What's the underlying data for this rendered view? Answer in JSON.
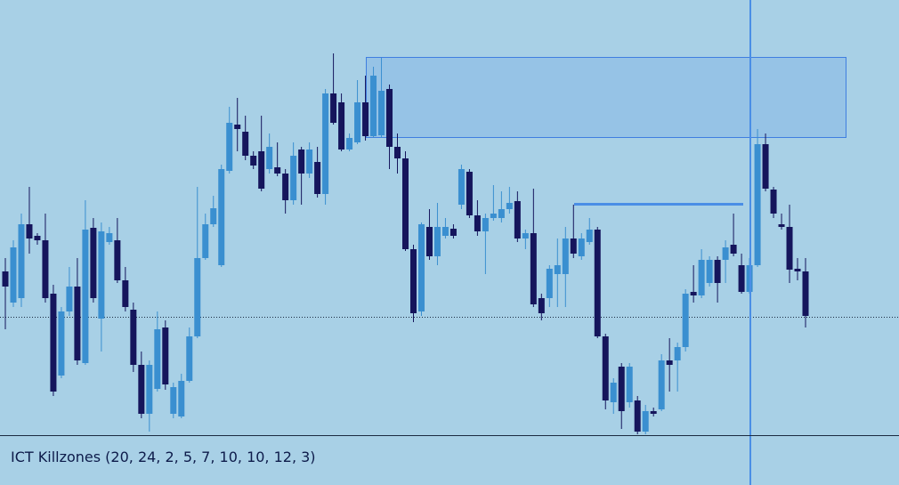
{
  "chart_data": {
    "type": "candlestick",
    "ylim": [
      0,
      488
    ],
    "up_color": "#3a8fd0",
    "down_color": "#15155c",
    "ohlc": [
      [
        183,
        198,
        118,
        166
      ],
      [
        148,
        218,
        143,
        210
      ],
      [
        153,
        248,
        143,
        236
      ],
      [
        236,
        278,
        203,
        220
      ],
      [
        223,
        226,
        213,
        218
      ],
      [
        218,
        248,
        148,
        153
      ],
      [
        158,
        168,
        43,
        48
      ],
      [
        66,
        143,
        63,
        138
      ],
      [
        138,
        188,
        133,
        166
      ],
      [
        166,
        198,
        78,
        83
      ],
      [
        80,
        263,
        78,
        230
      ],
      [
        232,
        243,
        148,
        153
      ],
      [
        130,
        238,
        93,
        228
      ],
      [
        216,
        233,
        213,
        226
      ],
      [
        218,
        243,
        170,
        173
      ],
      [
        173,
        188,
        138,
        143
      ],
      [
        140,
        148,
        70,
        78
      ],
      [
        78,
        93,
        18,
        23
      ],
      [
        23,
        83,
        3,
        78
      ],
      [
        51,
        138,
        48,
        118
      ],
      [
        120,
        128,
        50,
        56
      ],
      [
        23,
        58,
        18,
        53
      ],
      [
        20,
        68,
        18,
        60
      ],
      [
        60,
        120,
        58,
        110
      ],
      [
        110,
        278,
        108,
        198
      ],
      [
        198,
        248,
        196,
        236
      ],
      [
        236,
        268,
        233,
        254
      ],
      [
        190,
        303,
        188,
        298
      ],
      [
        296,
        368,
        293,
        350
      ],
      [
        348,
        378,
        318,
        343
      ],
      [
        340,
        358,
        308,
        313
      ],
      [
        313,
        318,
        298,
        302
      ],
      [
        318,
        358,
        273,
        276
      ],
      [
        298,
        338,
        293,
        323
      ],
      [
        300,
        328,
        290,
        293
      ],
      [
        293,
        298,
        248,
        263
      ],
      [
        263,
        328,
        258,
        313
      ],
      [
        320,
        323,
        258,
        293
      ],
      [
        293,
        328,
        288,
        320
      ],
      [
        306,
        323,
        266,
        270
      ],
      [
        270,
        388,
        258,
        383
      ],
      [
        383,
        428,
        348,
        350
      ],
      [
        373,
        383,
        318,
        320
      ],
      [
        320,
        338,
        318,
        333
      ],
      [
        328,
        398,
        326,
        373
      ],
      [
        373,
        403,
        330,
        335
      ],
      [
        335,
        413,
        333,
        403
      ],
      [
        336,
        423,
        333,
        386
      ],
      [
        388,
        393,
        298,
        323
      ],
      [
        323,
        338,
        293,
        310
      ],
      [
        310,
        318,
        206,
        208
      ],
      [
        208,
        213,
        126,
        136
      ],
      [
        138,
        238,
        133,
        236
      ],
      [
        233,
        253,
        196,
        200
      ],
      [
        200,
        260,
        190,
        233
      ],
      [
        223,
        243,
        220,
        233
      ],
      [
        231,
        236,
        220,
        223
      ],
      [
        258,
        303,
        253,
        298
      ],
      [
        295,
        298,
        243,
        246
      ],
      [
        246,
        263,
        223,
        228
      ],
      [
        228,
        248,
        180,
        243
      ],
      [
        243,
        280,
        240,
        248
      ],
      [
        243,
        273,
        238,
        253
      ],
      [
        253,
        278,
        248,
        260
      ],
      [
        262,
        273,
        216,
        220
      ],
      [
        220,
        230,
        208,
        226
      ],
      [
        226,
        276,
        143,
        146
      ],
      [
        153,
        158,
        128,
        136
      ],
      [
        153,
        190,
        143,
        186
      ],
      [
        180,
        220,
        143,
        190
      ],
      [
        180,
        233,
        143,
        220
      ],
      [
        220,
        258,
        198,
        203
      ],
      [
        200,
        226,
        196,
        220
      ],
      [
        216,
        243,
        213,
        230
      ],
      [
        230,
        233,
        108,
        110
      ],
      [
        110,
        113,
        28,
        38
      ],
      [
        36,
        63,
        23,
        58
      ],
      [
        76,
        80,
        6,
        26
      ],
      [
        36,
        80,
        30,
        76
      ],
      [
        38,
        43,
        0,
        3
      ],
      [
        3,
        33,
        0,
        26
      ],
      [
        26,
        30,
        20,
        23
      ],
      [
        28,
        90,
        26,
        83
      ],
      [
        83,
        108,
        48,
        78
      ],
      [
        83,
        103,
        48,
        98
      ],
      [
        98,
        163,
        93,
        158
      ],
      [
        160,
        190,
        148,
        156
      ],
      [
        156,
        208,
        153,
        196
      ],
      [
        170,
        200,
        166,
        196
      ],
      [
        196,
        200,
        148,
        170
      ],
      [
        196,
        218,
        170,
        210
      ],
      [
        213,
        248,
        200,
        203
      ],
      [
        190,
        203,
        158,
        160
      ],
      [
        160,
        198,
        158,
        190
      ],
      [
        190,
        343,
        188,
        326
      ],
      [
        326,
        338,
        273,
        276
      ],
      [
        275,
        278,
        243,
        248
      ],
      [
        236,
        248,
        230,
        233
      ],
      [
        233,
        258,
        170,
        185
      ],
      [
        186,
        198,
        173,
        183
      ],
      [
        183,
        198,
        120,
        133
      ]
    ]
  },
  "indicator_label": "ICT Killzones (20, 24, 2, 5, 7, 10, 10, 12, 3)"
}
